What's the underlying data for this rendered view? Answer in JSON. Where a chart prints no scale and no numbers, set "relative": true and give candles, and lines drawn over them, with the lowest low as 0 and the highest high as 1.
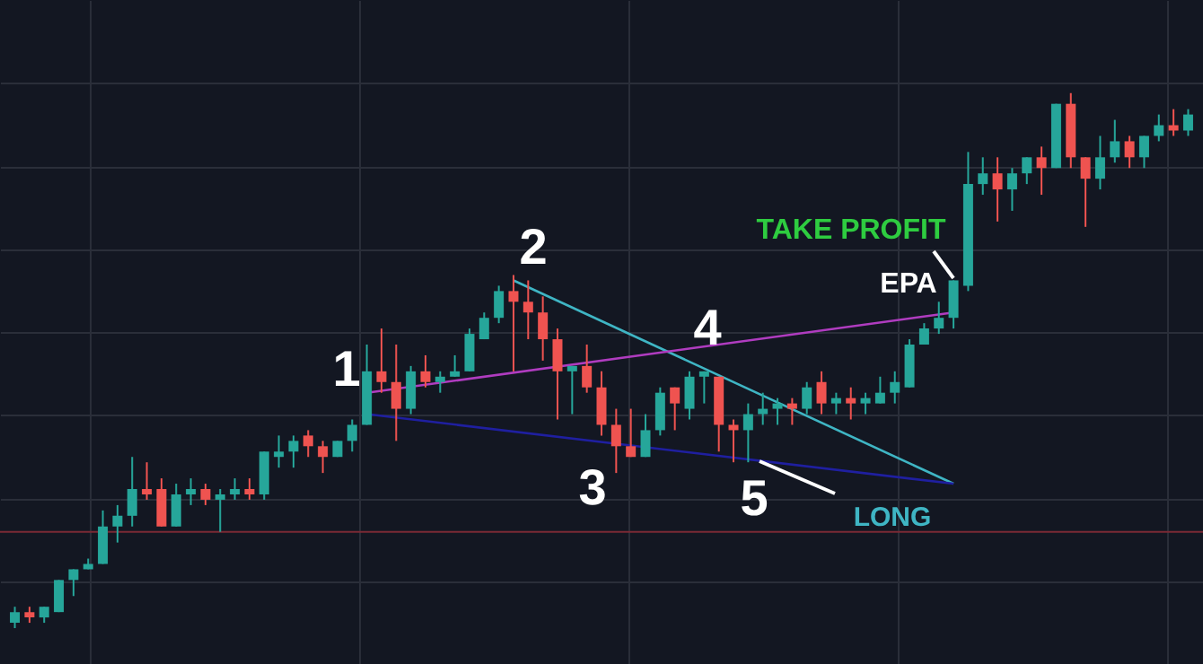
{
  "chart_data": {
    "type": "candlestick",
    "relative": true,
    "grid": true,
    "tick_labels": false,
    "categories": [
      null,
      null,
      null,
      null,
      null,
      null,
      null,
      null,
      null,
      null,
      null,
      null,
      null,
      null,
      null,
      null,
      null,
      null,
      null,
      null,
      null,
      null,
      null,
      null,
      null,
      null,
      null,
      null,
      null,
      null,
      null,
      null,
      null,
      null,
      null,
      null,
      null,
      null,
      null,
      null,
      null,
      null,
      null,
      null,
      null,
      null,
      null,
      null,
      null,
      null,
      null,
      null,
      null,
      null,
      null,
      null,
      null,
      null,
      null,
      null,
      null,
      null,
      null,
      null,
      null,
      null,
      null,
      null,
      null,
      null,
      null,
      null,
      null,
      null,
      null,
      null,
      null,
      null,
      null,
      null,
      null
    ],
    "ohlc": [
      [
        0.01,
        0.04,
        0.0,
        0.03
      ],
      [
        0.03,
        0.04,
        0.01,
        0.02
      ],
      [
        0.02,
        0.04,
        0.01,
        0.04
      ],
      [
        0.03,
        0.09,
        0.03,
        0.09
      ],
      [
        0.09,
        0.11,
        0.06,
        0.11
      ],
      [
        0.11,
        0.13,
        0.11,
        0.12
      ],
      [
        0.12,
        0.22,
        0.12,
        0.19
      ],
      [
        0.19,
        0.23,
        0.16,
        0.21
      ],
      [
        0.21,
        0.32,
        0.19,
        0.26
      ],
      [
        0.26,
        0.31,
        0.24,
        0.25
      ],
      [
        0.26,
        0.28,
        0.19,
        0.19
      ],
      [
        0.19,
        0.27,
        0.19,
        0.25
      ],
      [
        0.25,
        0.28,
        0.23,
        0.26
      ],
      [
        0.26,
        0.27,
        0.23,
        0.24
      ],
      [
        0.24,
        0.26,
        0.18,
        0.25
      ],
      [
        0.25,
        0.28,
        0.24,
        0.26
      ],
      [
        0.26,
        0.28,
        0.24,
        0.25
      ],
      [
        0.25,
        0.33,
        0.24,
        0.33
      ],
      [
        0.32,
        0.36,
        0.3,
        0.33
      ],
      [
        0.33,
        0.36,
        0.3,
        0.35
      ],
      [
        0.36,
        0.37,
        0.32,
        0.34
      ],
      [
        0.34,
        0.35,
        0.29,
        0.32
      ],
      [
        0.32,
        0.35,
        0.32,
        0.35
      ],
      [
        0.35,
        0.39,
        0.33,
        0.38
      ],
      [
        0.38,
        0.53,
        0.38,
        0.48
      ],
      [
        0.48,
        0.56,
        0.44,
        0.46
      ],
      [
        0.46,
        0.53,
        0.35,
        0.41
      ],
      [
        0.41,
        0.49,
        0.4,
        0.48
      ],
      [
        0.48,
        0.51,
        0.45,
        0.46
      ],
      [
        0.46,
        0.48,
        0.44,
        0.47
      ],
      [
        0.47,
        0.51,
        0.47,
        0.48
      ],
      [
        0.48,
        0.56,
        0.48,
        0.55
      ],
      [
        0.54,
        0.59,
        0.54,
        0.58
      ],
      [
        0.58,
        0.64,
        0.57,
        0.63
      ],
      [
        0.63,
        0.66,
        0.48,
        0.61
      ],
      [
        0.61,
        0.65,
        0.54,
        0.59
      ],
      [
        0.59,
        0.62,
        0.5,
        0.54
      ],
      [
        0.54,
        0.56,
        0.39,
        0.48
      ],
      [
        0.48,
        0.49,
        0.4,
        0.49
      ],
      [
        0.49,
        0.53,
        0.44,
        0.45
      ],
      [
        0.45,
        0.48,
        0.36,
        0.38
      ],
      [
        0.38,
        0.41,
        0.29,
        0.34
      ],
      [
        0.34,
        0.41,
        0.32,
        0.32
      ],
      [
        0.32,
        0.4,
        0.32,
        0.37
      ],
      [
        0.37,
        0.45,
        0.36,
        0.44
      ],
      [
        0.45,
        0.45,
        0.37,
        0.42
      ],
      [
        0.41,
        0.48,
        0.39,
        0.47
      ],
      [
        0.47,
        0.48,
        0.42,
        0.48
      ],
      [
        0.47,
        0.47,
        0.33,
        0.38
      ],
      [
        0.38,
        0.39,
        0.31,
        0.37
      ],
      [
        0.37,
        0.42,
        0.31,
        0.4
      ],
      [
        0.4,
        0.44,
        0.38,
        0.41
      ],
      [
        0.41,
        0.43,
        0.38,
        0.42
      ],
      [
        0.42,
        0.43,
        0.38,
        0.41
      ],
      [
        0.41,
        0.46,
        0.4,
        0.45
      ],
      [
        0.46,
        0.48,
        0.4,
        0.42
      ],
      [
        0.42,
        0.44,
        0.4,
        0.43
      ],
      [
        0.43,
        0.45,
        0.39,
        0.42
      ],
      [
        0.42,
        0.44,
        0.4,
        0.43
      ],
      [
        0.42,
        0.47,
        0.42,
        0.44
      ],
      [
        0.44,
        0.48,
        0.42,
        0.46
      ],
      [
        0.45,
        0.54,
        0.45,
        0.53
      ],
      [
        0.53,
        0.57,
        0.53,
        0.56
      ],
      [
        0.56,
        0.61,
        0.55,
        0.58
      ],
      [
        0.58,
        0.65,
        0.56,
        0.65
      ],
      [
        0.64,
        0.89,
        0.63,
        0.83
      ],
      [
        0.83,
        0.88,
        0.81,
        0.85
      ],
      [
        0.85,
        0.88,
        0.76,
        0.82
      ],
      [
        0.82,
        0.86,
        0.78,
        0.85
      ],
      [
        0.85,
        0.88,
        0.83,
        0.88
      ],
      [
        0.88,
        0.9,
        0.81,
        0.86
      ],
      [
        0.86,
        0.98,
        0.86,
        0.98
      ],
      [
        0.98,
        1.0,
        0.86,
        0.88
      ],
      [
        0.88,
        0.88,
        0.75,
        0.84
      ],
      [
        0.84,
        0.92,
        0.82,
        0.88
      ],
      [
        0.88,
        0.95,
        0.87,
        0.91
      ],
      [
        0.91,
        0.92,
        0.86,
        0.88
      ],
      [
        0.88,
        0.92,
        0.86,
        0.92
      ],
      [
        0.92,
        0.96,
        0.91,
        0.94
      ],
      [
        0.94,
        0.97,
        0.92,
        0.93
      ],
      [
        0.93,
        0.97,
        0.92,
        0.96
      ]
    ],
    "colors": [
      "#26a69a",
      "#ef5350",
      "#26a69a",
      "#26a69a",
      "#26a69a",
      "#26a69a",
      "#26a69a",
      "#26a69a",
      "#26a69a",
      "#ef5350",
      "#ef5350",
      "#26a69a",
      "#26a69a",
      "#ef5350",
      "#26a69a",
      "#26a69a",
      "#ef5350",
      "#26a69a",
      "#26a69a",
      "#26a69a",
      "#ef5350",
      "#ef5350",
      "#26a69a",
      "#26a69a",
      "#26a69a",
      "#ef5350",
      "#ef5350",
      "#26a69a",
      "#ef5350",
      "#26a69a",
      "#26a69a",
      "#26a69a",
      "#26a69a",
      "#26a69a",
      "#ef5350",
      "#ef5350",
      "#ef5350",
      "#ef5350",
      "#26a69a",
      "#ef5350",
      "#ef5350",
      "#ef5350",
      "#ef5350",
      "#26a69a",
      "#26a69a",
      "#ef5350",
      "#26a69a",
      "#26a69a",
      "#ef5350",
      "#ef5350",
      "#26a69a",
      "#26a69a",
      "#26a69a",
      "#ef5350",
      "#26a69a",
      "#ef5350",
      "#26a69a",
      "#ef5350",
      "#26a69a",
      "#26a69a",
      "#26a69a",
      "#26a69a",
      "#26a69a",
      "#26a69a",
      "#26a69a",
      "#26a69a",
      "#26a69a",
      "#ef5350",
      "#26a69a",
      "#26a69a",
      "#ef5350",
      "#26a69a",
      "#ef5350",
      "#ef5350",
      "#26a69a",
      "#26a69a",
      "#ef5350",
      "#26a69a",
      "#26a69a",
      "#ef5350",
      "#26a69a"
    ],
    "series": [
      {
        "type": "line",
        "values": [
          null,
          null,
          null,
          null,
          null,
          null,
          null,
          null,
          null,
          null,
          null,
          null,
          null,
          null,
          null,
          null,
          null,
          null,
          null,
          null,
          null,
          null,
          null,
          null,
          null,
          null,
          null,
          null,
          null,
          null,
          null,
          null,
          null,
          null,
          0.65,
          null,
          null,
          null,
          null,
          null,
          null,
          null,
          null,
          null,
          null,
          null,
          null,
          null,
          null,
          null,
          null,
          null,
          null,
          null,
          null,
          null,
          null,
          null,
          null,
          null,
          null,
          null,
          null,
          null,
          0.27,
          null,
          null,
          null,
          null,
          null,
          null,
          null,
          null,
          null,
          null,
          null,
          null,
          null,
          null,
          null,
          null
        ],
        "color": "#3fb5c4"
      },
      {
        "type": "line",
        "values": [
          null,
          null,
          null,
          null,
          null,
          null,
          null,
          null,
          null,
          null,
          null,
          null,
          null,
          null,
          null,
          null,
          null,
          null,
          null,
          null,
          null,
          null,
          null,
          null,
          0.44,
          null,
          null,
          null,
          null,
          null,
          null,
          null,
          null,
          null,
          null,
          null,
          null,
          null,
          null,
          null,
          null,
          null,
          null,
          null,
          null,
          null,
          null,
          null,
          null,
          null,
          null,
          null,
          null,
          null,
          null,
          null,
          null,
          null,
          null,
          null,
          null,
          null,
          null,
          null,
          0.59,
          null,
          null,
          null,
          null,
          null,
          null,
          null,
          null,
          null,
          null,
          null,
          null,
          null,
          null,
          null,
          null
        ],
        "color": "#b03cc0"
      },
      {
        "type": "line",
        "values": [
          null,
          null,
          null,
          null,
          null,
          null,
          null,
          null,
          null,
          null,
          null,
          null,
          null,
          null,
          null,
          null,
          null,
          null,
          null,
          null,
          null,
          null,
          null,
          null,
          0.4,
          null,
          null,
          null,
          null,
          null,
          null,
          null,
          null,
          null,
          null,
          null,
          null,
          null,
          null,
          null,
          null,
          null,
          null,
          null,
          null,
          null,
          null,
          null,
          null,
          null,
          null,
          null,
          null,
          null,
          null,
          null,
          null,
          null,
          null,
          null,
          null,
          null,
          null,
          null,
          0.27,
          null,
          null,
          null,
          null,
          null,
          null,
          null,
          null,
          null,
          null,
          null,
          null,
          null,
          null,
          null,
          null
        ],
        "color": "#1f1fa0"
      }
    ],
    "ref_lines": [
      {
        "axis": "y",
        "value": 0.18,
        "label": null,
        "color": "#7a2a35"
      }
    ],
    "annotations": [
      "1",
      "2",
      "3",
      "4",
      "5",
      "TAKE PROFIT",
      "EPA",
      "LONG"
    ]
  }
}
